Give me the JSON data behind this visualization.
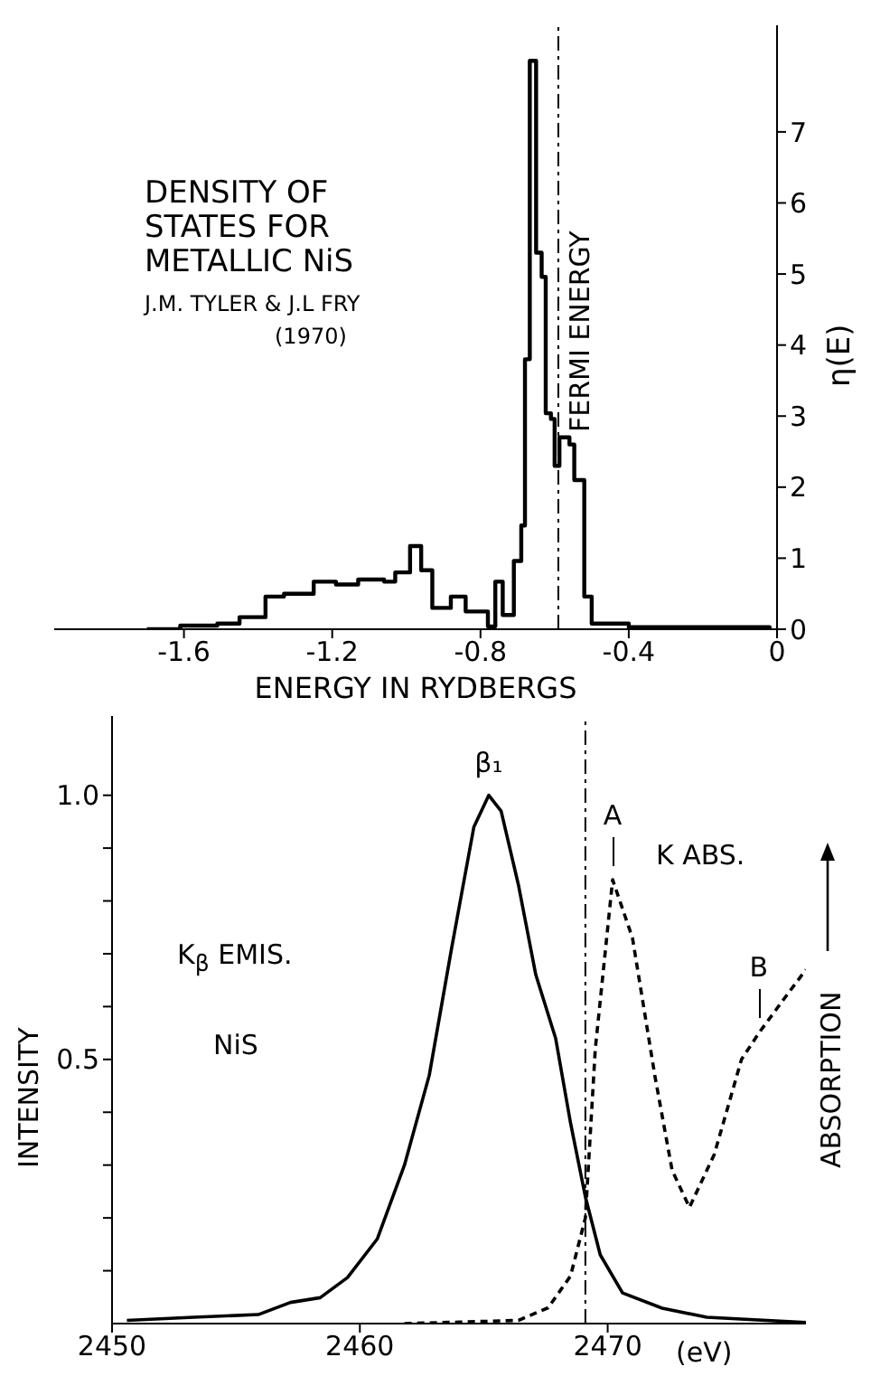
{
  "chart_data": [
    {
      "type": "step",
      "title": "DENSITY OF STATES FOR METALLIC NiS",
      "subtitle": "J.M. TYLER & J.L FRY (1970)",
      "xlabel": "ENERGY IN RYDBERGS",
      "ylabel": "η(E)",
      "series": [
        {
          "color": "#000000",
          "x": [
            -1.7,
            -1.61,
            -1.51,
            -1.45,
            -1.38,
            -1.33,
            -1.25,
            -1.19,
            -1.13,
            -1.06,
            -1.03,
            -0.99,
            -0.96,
            -0.93,
            -0.88,
            -0.84,
            -0.78,
            -0.76,
            -0.74,
            -0.71,
            -0.69,
            -0.68,
            -0.667,
            -0.656,
            -0.65,
            -0.635,
            -0.624,
            -0.61,
            -0.6,
            -0.587,
            -0.56,
            -0.547,
            -0.52,
            -0.5,
            -0.4,
            -0.02
          ],
          "values": [
            0.0,
            0.05,
            0.08,
            0.17,
            0.46,
            0.5,
            0.67,
            0.63,
            0.7,
            0.67,
            0.8,
            1.17,
            0.83,
            0.3,
            0.46,
            0.25,
            0.04,
            0.67,
            0.2,
            0.96,
            1.46,
            3.8,
            8.0,
            8.0,
            5.3,
            4.96,
            3.04,
            2.96,
            2.3,
            2.7,
            2.6,
            2.1,
            0.46,
            0.08,
            0.03,
            0.0
          ]
        }
      ],
      "xlim": [
        -1.95,
        0
      ],
      "xticks": [
        -1.6,
        -1.2,
        -0.8,
        -0.4,
        0
      ],
      "ylim": [
        0,
        8.5
      ],
      "yticks": [
        0,
        1,
        2,
        3,
        4,
        5,
        6,
        7
      ],
      "ref_lines": [
        {
          "axis": "x",
          "value": -0.59,
          "label": "FERMI ENERGY",
          "line_style": "dashdot"
        }
      ],
      "marker": "none",
      "grid": false,
      "legend": false
    },
    {
      "type": "line",
      "xlabel": "(eV)",
      "ylabel": "INTENSITY",
      "y2label": "ABSORPTION",
      "series": [
        {
          "color": "#000000",
          "line_style": "solid",
          "x": [
            2450.6,
            2453.3,
            2455.9,
            2457.2,
            2458.4,
            2459.5,
            2460.7,
            2461.8,
            2462.8,
            2463.7,
            2464.6,
            2465.2,
            2465.7,
            2466.4,
            2467.1,
            2467.9,
            2468.5,
            2469.1,
            2469.7,
            2470.6,
            2472.2,
            2474.0,
            2478.0
          ],
          "values": [
            0.006,
            0.012,
            0.017,
            0.04,
            0.049,
            0.087,
            0.16,
            0.3,
            0.47,
            0.71,
            0.94,
            1.0,
            0.97,
            0.83,
            0.66,
            0.54,
            0.38,
            0.24,
            0.13,
            0.058,
            0.029,
            0.012,
            0.002
          ]
        },
        {
          "color": "#000000",
          "line_style": "dashed",
          "x": [
            2461.8,
            2466.4,
            2467.6,
            2468.5,
            2469.1,
            2469.5,
            2470.2,
            2471.0,
            2471.9,
            2472.6,
            2473.3,
            2474.3,
            2475.4,
            2476.1,
            2477.2,
            2478.0
          ],
          "values": [
            0.0,
            0.006,
            0.03,
            0.09,
            0.2,
            0.52,
            0.84,
            0.73,
            0.47,
            0.29,
            0.22,
            0.32,
            0.5,
            0.55,
            0.62,
            0.67
          ]
        }
      ],
      "xlim": [
        2450,
        2478
      ],
      "xticks": [
        2450,
        2460,
        2470
      ],
      "ylim": [
        0,
        1.15
      ],
      "yticks": [
        {
          "value": 0.1,
          "label": null
        },
        {
          "value": 0.2,
          "label": null
        },
        {
          "value": 0.3,
          "label": null
        },
        {
          "value": 0.4,
          "label": null
        },
        {
          "value": 0.5,
          "label": "0.5"
        },
        {
          "value": 0.6,
          "label": null
        },
        {
          "value": 0.7,
          "label": null
        },
        {
          "value": 0.8,
          "label": null
        },
        {
          "value": 0.9,
          "label": null
        },
        {
          "value": 1.0,
          "label": "1.0"
        }
      ],
      "ref_lines": [
        {
          "axis": "x",
          "value": 2469.1,
          "line_style": "dashdot"
        }
      ],
      "annotations": [
        "K$_{β}$ EMIS.",
        "NiS",
        "K ABS.",
        {
          "text": "β₁",
          "x": 2465.2,
          "y": 1.0
        },
        {
          "text": "A",
          "x": 2470.2,
          "y": 0.84
        },
        {
          "text": "B",
          "x": 2476.1,
          "y": 0.55
        }
      ],
      "marker": "none",
      "grid": false,
      "legend": false
    }
  ]
}
